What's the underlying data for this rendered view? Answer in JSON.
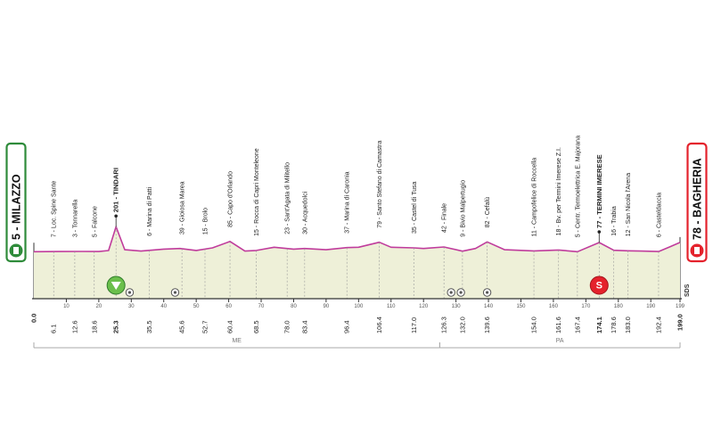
{
  "chart_data": {
    "type": "area",
    "title": "",
    "xlabel": "",
    "ylabel": "",
    "xlim": [
      0,
      199.0
    ],
    "start": {
      "label": "5 - MILAZZO",
      "altitude": 5,
      "km": 0.0,
      "km_label": "0.0",
      "icon": "start-flag-icon"
    },
    "finish": {
      "label": "78 - BAGHERIA",
      "altitude": 78,
      "km": 199.0,
      "km_label": "199.0",
      "icon": "finish-flag-icon"
    },
    "scale_ticks": [
      10,
      20,
      30,
      40,
      50,
      60,
      70,
      80,
      90,
      100,
      110,
      120,
      130,
      140,
      150,
      160,
      170,
      180,
      190,
      199
    ],
    "profile": [
      [
        0,
        5
      ],
      [
        8,
        6
      ],
      [
        15,
        7
      ],
      [
        20,
        6
      ],
      [
        23,
        14
      ],
      [
        25.3,
        201
      ],
      [
        28,
        20
      ],
      [
        33,
        10
      ],
      [
        40,
        25
      ],
      [
        45,
        30
      ],
      [
        50,
        15
      ],
      [
        55,
        35
      ],
      [
        60.4,
        85
      ],
      [
        65,
        10
      ],
      [
        68.5,
        15
      ],
      [
        74,
        40
      ],
      [
        80,
        25
      ],
      [
        83.4,
        30
      ],
      [
        90,
        20
      ],
      [
        96.4,
        37
      ],
      [
        100,
        40
      ],
      [
        106.4,
        79
      ],
      [
        110,
        40
      ],
      [
        117,
        35
      ],
      [
        120,
        30
      ],
      [
        126.3,
        42
      ],
      [
        132,
        9
      ],
      [
        136,
        30
      ],
      [
        139.6,
        82
      ],
      [
        145,
        20
      ],
      [
        154,
        11
      ],
      [
        161.6,
        18
      ],
      [
        167.4,
        5
      ],
      [
        174.1,
        77
      ],
      [
        178.6,
        16
      ],
      [
        183,
        12
      ],
      [
        187,
        10
      ],
      [
        192.4,
        6
      ],
      [
        196,
        45
      ],
      [
        199,
        78
      ]
    ],
    "waypoints": [
      {
        "km": 6.1,
        "km_label": "6.1",
        "label": "7 - Loc. Spine Sante",
        "bold": false
      },
      {
        "km": 12.6,
        "km_label": "12.6",
        "label": "3 - Tonnarella",
        "bold": false
      },
      {
        "km": 18.6,
        "km_label": "18.6",
        "label": "5 - Falcone",
        "bold": false
      },
      {
        "km": 25.3,
        "km_label": "25.3",
        "label": "201 - TINDARI",
        "bold": true
      },
      {
        "km": 35.5,
        "km_label": "35.5",
        "label": "6 - Marina di Patti",
        "bold": false
      },
      {
        "km": 45.6,
        "km_label": "45.6",
        "label": "39 - Gioiosa Marea",
        "bold": false
      },
      {
        "km": 52.7,
        "km_label": "52.7",
        "label": "15 - Brolo",
        "bold": false
      },
      {
        "km": 60.4,
        "km_label": "60.4",
        "label": "85 - Capo d'Orlando",
        "bold": false
      },
      {
        "km": 68.5,
        "km_label": "68.5",
        "label": "15 - Rocca di Capri Monteleone",
        "bold": false
      },
      {
        "km": 78.0,
        "km_label": "78.0",
        "label": "23 - Sant'Agata di Militello",
        "bold": false
      },
      {
        "km": 83.4,
        "km_label": "83.4",
        "label": "30 - Acquedolci",
        "bold": false
      },
      {
        "km": 96.4,
        "km_label": "96.4",
        "label": "37 - Marina di Caronia",
        "bold": false
      },
      {
        "km": 106.4,
        "km_label": "106.4",
        "label": "79 - Santo Stefano di Camastra",
        "bold": false
      },
      {
        "km": 117.0,
        "km_label": "117.0",
        "label": "35 - Castel di Tusa",
        "bold": false
      },
      {
        "km": 126.3,
        "km_label": "126.3",
        "label": "42 - Finale",
        "bold": false
      },
      {
        "km": 132.0,
        "km_label": "132.0",
        "label": "9 - Bivio Malpertugio",
        "bold": false
      },
      {
        "km": 139.6,
        "km_label": "139.6",
        "label": "82 - Cefalù",
        "bold": false
      },
      {
        "km": 154.0,
        "km_label": "154.0",
        "label": "11 - Campofelice di Roccella",
        "bold": false
      },
      {
        "km": 161.6,
        "km_label": "161.6",
        "label": "18 - Bv. per Termini Imerese Z.I.",
        "bold": false
      },
      {
        "km": 167.4,
        "km_label": "167.4",
        "label": "5 - Centr. Termoelettrica E. Majorana",
        "bold": false
      },
      {
        "km": 174.1,
        "km_label": "174.1",
        "label": "77 - TERMINI IMERESE",
        "bold": true
      },
      {
        "km": 178.6,
        "km_label": "178.6",
        "label": "16 - Trabia",
        "bold": false
      },
      {
        "km": 183.0,
        "km_label": "183.0",
        "label": "12 - San Nicola l'Arena",
        "bold": false
      },
      {
        "km": 192.4,
        "km_label": "192.4",
        "label": "6 - Casteldaccia",
        "bold": false
      }
    ],
    "markers": [
      {
        "km": 25.3,
        "kind": "gpm",
        "label": "",
        "icon": "mountain-gpm-icon",
        "color": "#6abf4b"
      },
      {
        "km": 174.1,
        "kind": "sprint",
        "label": "S",
        "icon": "intermediate-sprint-icon",
        "color": "#e4222c"
      }
    ],
    "feed_points": [
      29.5,
      43.5,
      128.5,
      131.5,
      139.6
    ],
    "provinces": [
      {
        "label": "ME",
        "from": 0,
        "to": 125
      },
      {
        "label": "PA",
        "from": 125,
        "to": 199
      }
    ],
    "sds_label": "SDS",
    "colors": {
      "profile_line": "#c03c9c",
      "profile_fill": "#eef0d8",
      "start_border": "#2e8b3a",
      "finish_border": "#e4222c",
      "text": "#222222",
      "province_line": "#aaaaaa"
    }
  }
}
